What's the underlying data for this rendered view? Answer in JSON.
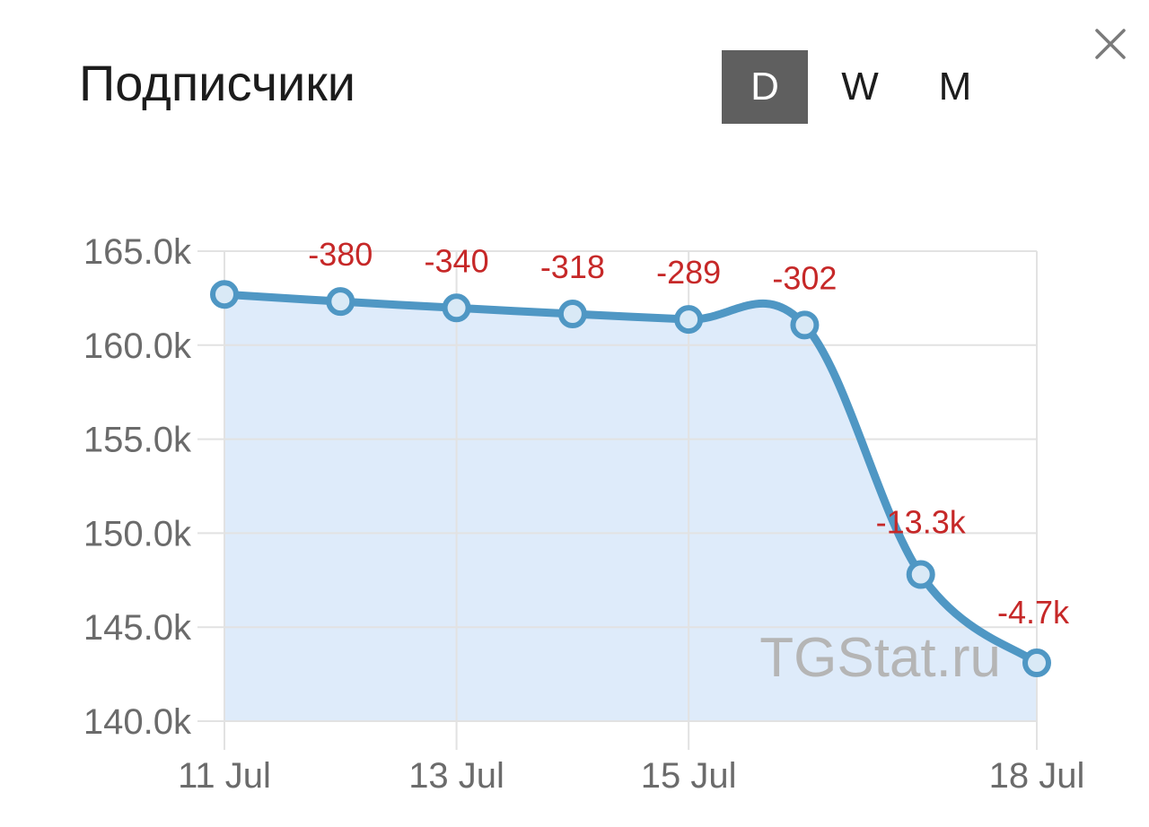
{
  "header": {
    "title": "Подписчики",
    "periods": [
      "D",
      "W",
      "M"
    ],
    "active_period": "D",
    "close_icon": "close-icon"
  },
  "watermark": "TGStat.ru",
  "colors": {
    "line": "#4f97c4",
    "area": "#deebfa",
    "grid": "#e2e2e2",
    "delta": "#c62828",
    "active_period_bg": "#5f5f5f"
  },
  "chart_data": {
    "type": "area",
    "title": "Подписчики",
    "x": [
      "11 Jul",
      "12 Jul",
      "13 Jul",
      "14 Jul",
      "15 Jul",
      "16 Jul",
      "17 Jul",
      "18 Jul"
    ],
    "x_ticks": [
      "11 Jul",
      "13 Jul",
      "15 Jul",
      "18 Jul"
    ],
    "series": [
      {
        "values": [
          162700,
          162320,
          161980,
          161660,
          161370,
          161070,
          147800,
          143100
        ]
      }
    ],
    "data_labels": [
      null,
      "-380",
      "-340",
      "-318",
      "-289",
      "-302",
      "-13.3k",
      "-4.7k"
    ],
    "ylim": [
      140000,
      165000
    ],
    "y_ticks": [
      "165.0k",
      "160.0k",
      "155.0k",
      "150.0k",
      "145.0k",
      "140.0k"
    ],
    "grid": true,
    "legend": "none"
  }
}
